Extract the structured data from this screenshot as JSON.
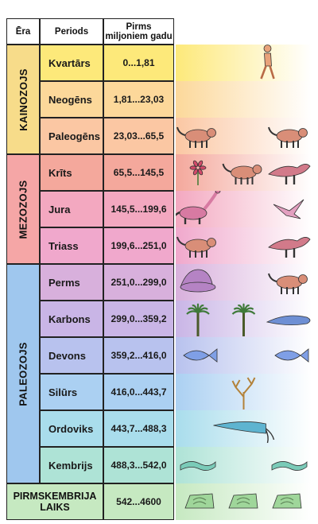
{
  "headers": {
    "era": "Ēra",
    "period": "Periods",
    "time_line1": "Pirms",
    "time_line2": "miljoniem gadu"
  },
  "eras": [
    {
      "name": "KAINOZOJS",
      "color": "#f7dc8a"
    },
    {
      "name": "MEZOZOJS",
      "color": "#f5a6a6"
    },
    {
      "name": "PALEOZOJS",
      "color": "#9fc7ee"
    }
  ],
  "periods": [
    {
      "name": "Kvartārs",
      "range": "0...1,81",
      "era": 0,
      "color": "#fde97a",
      "creatures": [
        "human-walking"
      ]
    },
    {
      "name": "Neogēns",
      "range": "1,81...23,03",
      "era": 0,
      "color": "#fcd89a",
      "creatures": []
    },
    {
      "name": "Paleogēns",
      "range": "23,03...65,5",
      "era": 0,
      "color": "#fbc7a3",
      "creatures": [
        "mammal",
        "mammal"
      ]
    },
    {
      "name": "Krīts",
      "range": "65,5...145,5",
      "era": 1,
      "color": "#f4a89c",
      "creatures": [
        "flower",
        "mammal",
        "dinosaur"
      ]
    },
    {
      "name": "Jura",
      "range": "145,5...199,6",
      "era": 1,
      "color": "#f3a8c0",
      "creatures": [
        "long-neck-dinosaur",
        "bird"
      ]
    },
    {
      "name": "Triass",
      "range": "199,6...251,0",
      "era": 1,
      "color": "#f0a8cc",
      "creatures": [
        "mammal",
        "dinosaur"
      ]
    },
    {
      "name": "Perms",
      "range": "251,0...299,0",
      "era": 2,
      "color": "#d8b0dc",
      "creatures": [
        "sail-reptile",
        "mammal"
      ]
    },
    {
      "name": "Karbons",
      "range": "299,0...359,2",
      "era": 2,
      "color": "#c9b5e6",
      "creatures": [
        "tree",
        "tree",
        "amphibian"
      ]
    },
    {
      "name": "Devons",
      "range": "359,2...416,0",
      "era": 2,
      "color": "#b8c2ee",
      "creatures": [
        "fish",
        "fish"
      ]
    },
    {
      "name": "Silūrs",
      "range": "416,0...443,7",
      "era": 2,
      "color": "#abd0f2",
      "creatures": [
        "plant"
      ]
    },
    {
      "name": "Ordoviks",
      "range": "443,7...488,3",
      "era": 2,
      "color": "#a9ddec",
      "creatures": [
        "nautiloid"
      ]
    },
    {
      "name": "Kembrijs",
      "range": "488,3...542,0",
      "era": 2,
      "color": "#aee3d6",
      "creatures": [
        "worm",
        "worm"
      ]
    }
  ],
  "precambrian": {
    "line1": "PIRMSKEMBRIJA",
    "line2": "LAIKS",
    "range": "542...4600",
    "color": "#c6e9c1",
    "creatures": [
      "fossil",
      "fossil",
      "fossil"
    ]
  }
}
